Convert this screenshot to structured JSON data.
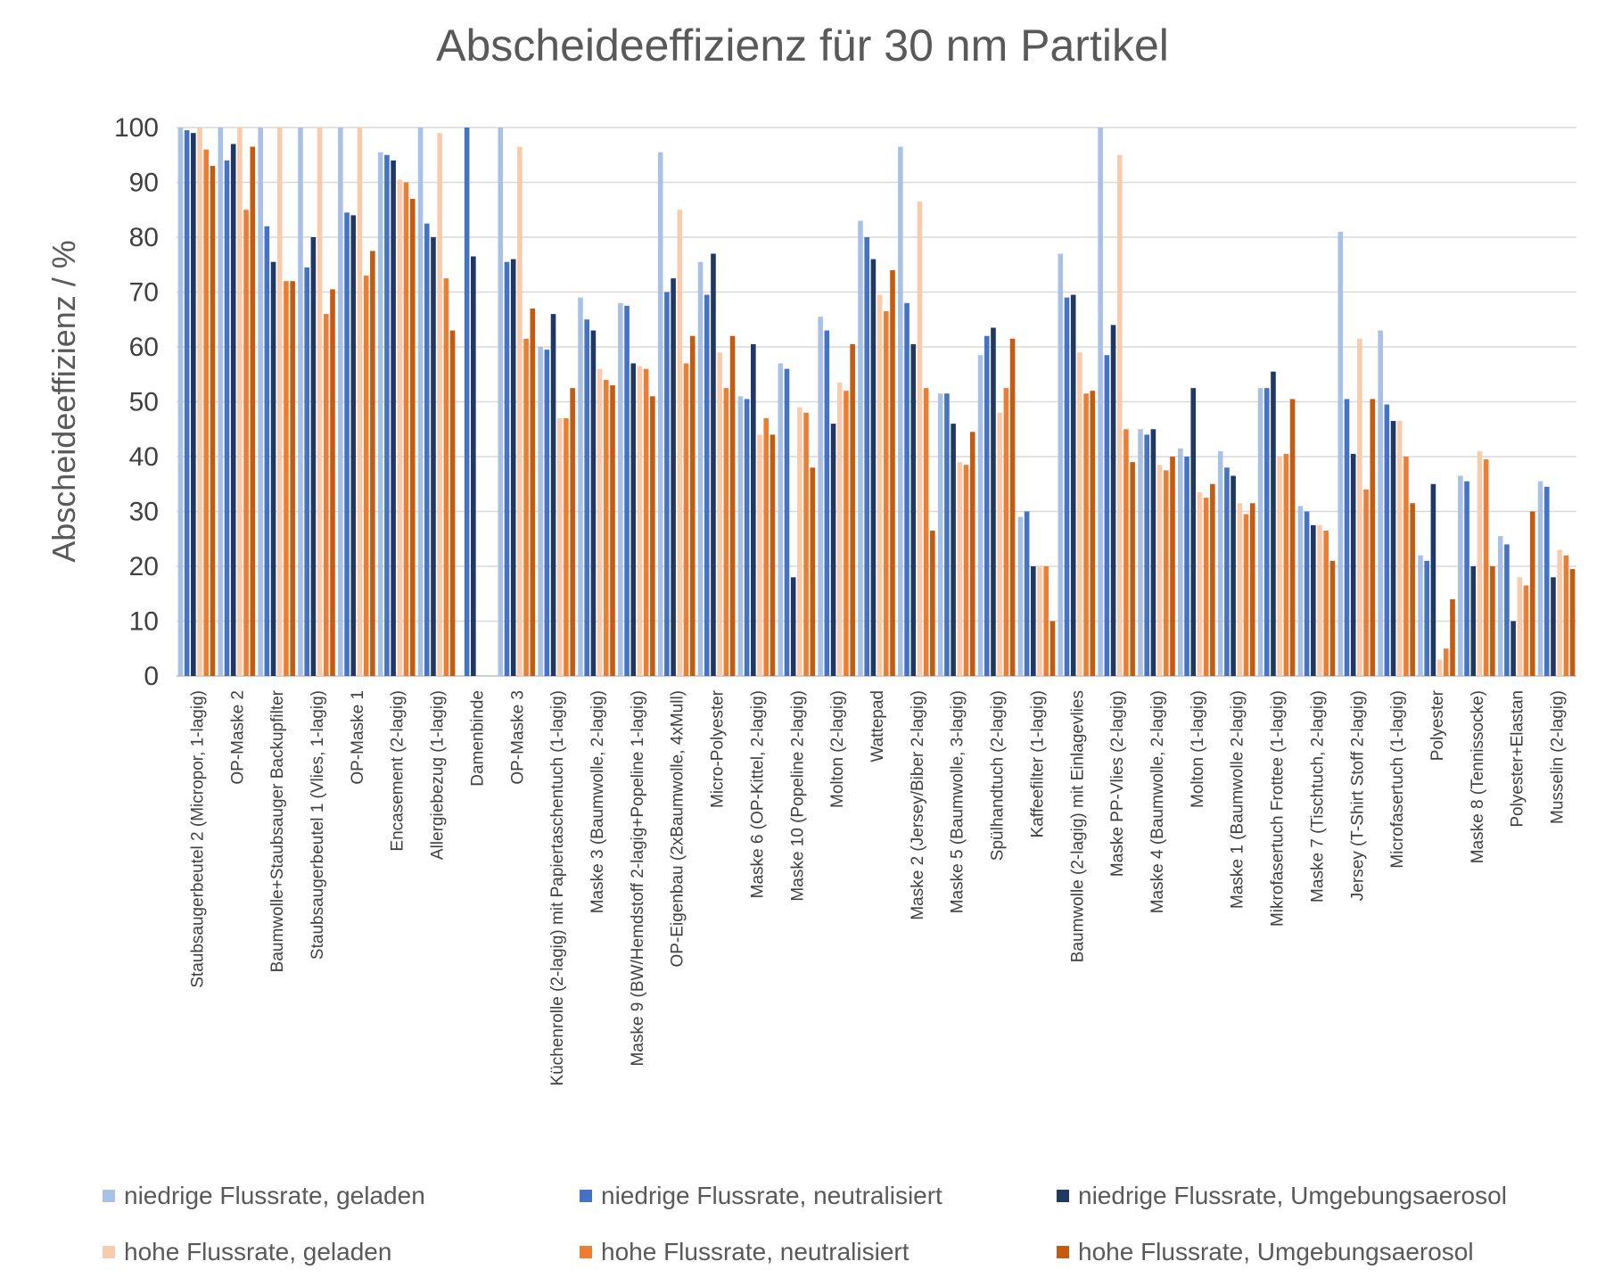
{
  "chart_data": {
    "type": "bar",
    "title": "Abscheideeffizienz für 30 nm Partikel",
    "ylabel": "Abscheideeffizienz / %",
    "xlabel": "",
    "ylim": [
      0,
      100
    ],
    "yticks": [
      0,
      10,
      20,
      30,
      40,
      50,
      60,
      70,
      80,
      90,
      100
    ],
    "grid": true,
    "legend_position": "bottom",
    "categories": [
      "Staubsaugerbeutel 2 (Micropor, 1-lagig)",
      "OP-Maske 2",
      "Baumwolle+Staubsauger Backupfilter",
      "Staubsaugerbeutel 1 (Vlies, 1-lagig)",
      "OP-Maske 1",
      "Encasement (2-lagig)",
      "Allergiebezug (1-lagig)",
      "Damenbinde",
      "OP-Maske 3",
      "Küchenrolle (2-lagig) mit Papiertaschentuch (1-lagig)",
      "Maske 3 (Baumwolle, 2-lagig)",
      "Maske 9 (BW/Hemdstoff 2-lagig+Popeline 1-lagig)",
      "OP-Eigenbau (2xBaumwolle, 4xMull)",
      "Micro-Polyester",
      "Maske 6 (OP-Kittel, 2-lagig)",
      "Maske 10 (Popeline 2-lagig)",
      "Molton (2-lagig)",
      "Wattepad",
      "Maske 2 (Jersey/Biber 2-lagig)",
      "Maske 5 (Baumwolle, 3-lagig)",
      "Spülhandtuch (2-lagig)",
      "Kaffeefilter (1-lagig)",
      "Baumwolle (2-lagig) mit Einlagevlies",
      "Maske PP-Vlies (2-lagig)",
      "Maske 4 (Baumwolle, 2-lagig)",
      "Molton (1-lagig)",
      "Maske 1 (Baumwolle 2-lagig)",
      "Mikrofasertuch Frottee (1-lagig)",
      "Maske 7 (Tischtuch, 2-lagig)",
      "Jersey (T-Shirt Stoff 2-lagig)",
      "Microfasertuch (1-lagig)",
      "Polyester",
      "Maske 8 (Tennissocke)",
      "Polyester+Elastan",
      "Musselin (2-lagig)"
    ],
    "series": [
      {
        "name": "niedrige Flussrate, geladen",
        "color": "#a9c1e6",
        "values": [
          100,
          100,
          100,
          100,
          100,
          95.5,
          100,
          null,
          100,
          60,
          69,
          68,
          95.5,
          75.5,
          51,
          57,
          65.5,
          83,
          96.5,
          51.5,
          58.5,
          29,
          77,
          100,
          45,
          41.5,
          41,
          52.5,
          31,
          81,
          63,
          22,
          36.5,
          25.5,
          35.5
        ]
      },
      {
        "name": "niedrige Flussrate, neutralisiert",
        "color": "#4472c4",
        "values": [
          99.5,
          94,
          82,
          74.5,
          84.5,
          95,
          82.5,
          100,
          75.5,
          59.5,
          65,
          67.5,
          70,
          69.5,
          50.5,
          56,
          63,
          80,
          68,
          51.5,
          62,
          30,
          69,
          58.5,
          44,
          40,
          38,
          52.5,
          30,
          50.5,
          49.5,
          21,
          35.5,
          24,
          34.5
        ]
      },
      {
        "name": "niedrige Flussrate, Umgebungsaerosol",
        "color": "#1f3864",
        "values": [
          99,
          97,
          75.5,
          80,
          84,
          94,
          80,
          76.5,
          76,
          66,
          63,
          57,
          72.5,
          77,
          60.5,
          18,
          46,
          76,
          60.5,
          46,
          63.5,
          20,
          69.5,
          64,
          45,
          52.5,
          36.5,
          55.5,
          27.5,
          40.5,
          46.5,
          35,
          20,
          10,
          18
        ]
      },
      {
        "name": "hohe Flussrate, geladen",
        "color": "#f8cbad",
        "values": [
          100,
          100,
          100,
          100,
          100,
          90.5,
          99,
          null,
          96.5,
          47,
          56,
          56.5,
          85,
          59,
          44,
          49,
          53.5,
          69.5,
          86.5,
          39,
          48,
          20,
          59,
          95,
          38.5,
          33.5,
          31.5,
          40,
          27.5,
          61.5,
          46.5,
          3,
          41,
          18,
          23
        ]
      },
      {
        "name": "hohe Flussrate, neutralisiert",
        "color": "#ed7d31",
        "values": [
          96,
          85,
          72,
          66,
          73,
          90,
          72.5,
          null,
          61.5,
          47,
          54,
          56,
          57,
          52.5,
          47,
          48,
          52,
          66.5,
          52.5,
          38.5,
          52.5,
          20,
          51.5,
          45,
          37.5,
          32.5,
          29.5,
          40.5,
          26.5,
          34,
          40,
          5,
          39.5,
          16.5,
          22
        ]
      },
      {
        "name": "hohe Flussrate, Umgebungsaerosol",
        "color": "#c55a11",
        "values": [
          93,
          96.5,
          72,
          70.5,
          77.5,
          87,
          63,
          null,
          67,
          52.5,
          53,
          51,
          62,
          62,
          44,
          38,
          60.5,
          74,
          26.5,
          44.5,
          61.5,
          10,
          52,
          39,
          40,
          35,
          31.5,
          50.5,
          21,
          50.5,
          31.5,
          14,
          20,
          30,
          19.5
        ]
      }
    ]
  }
}
